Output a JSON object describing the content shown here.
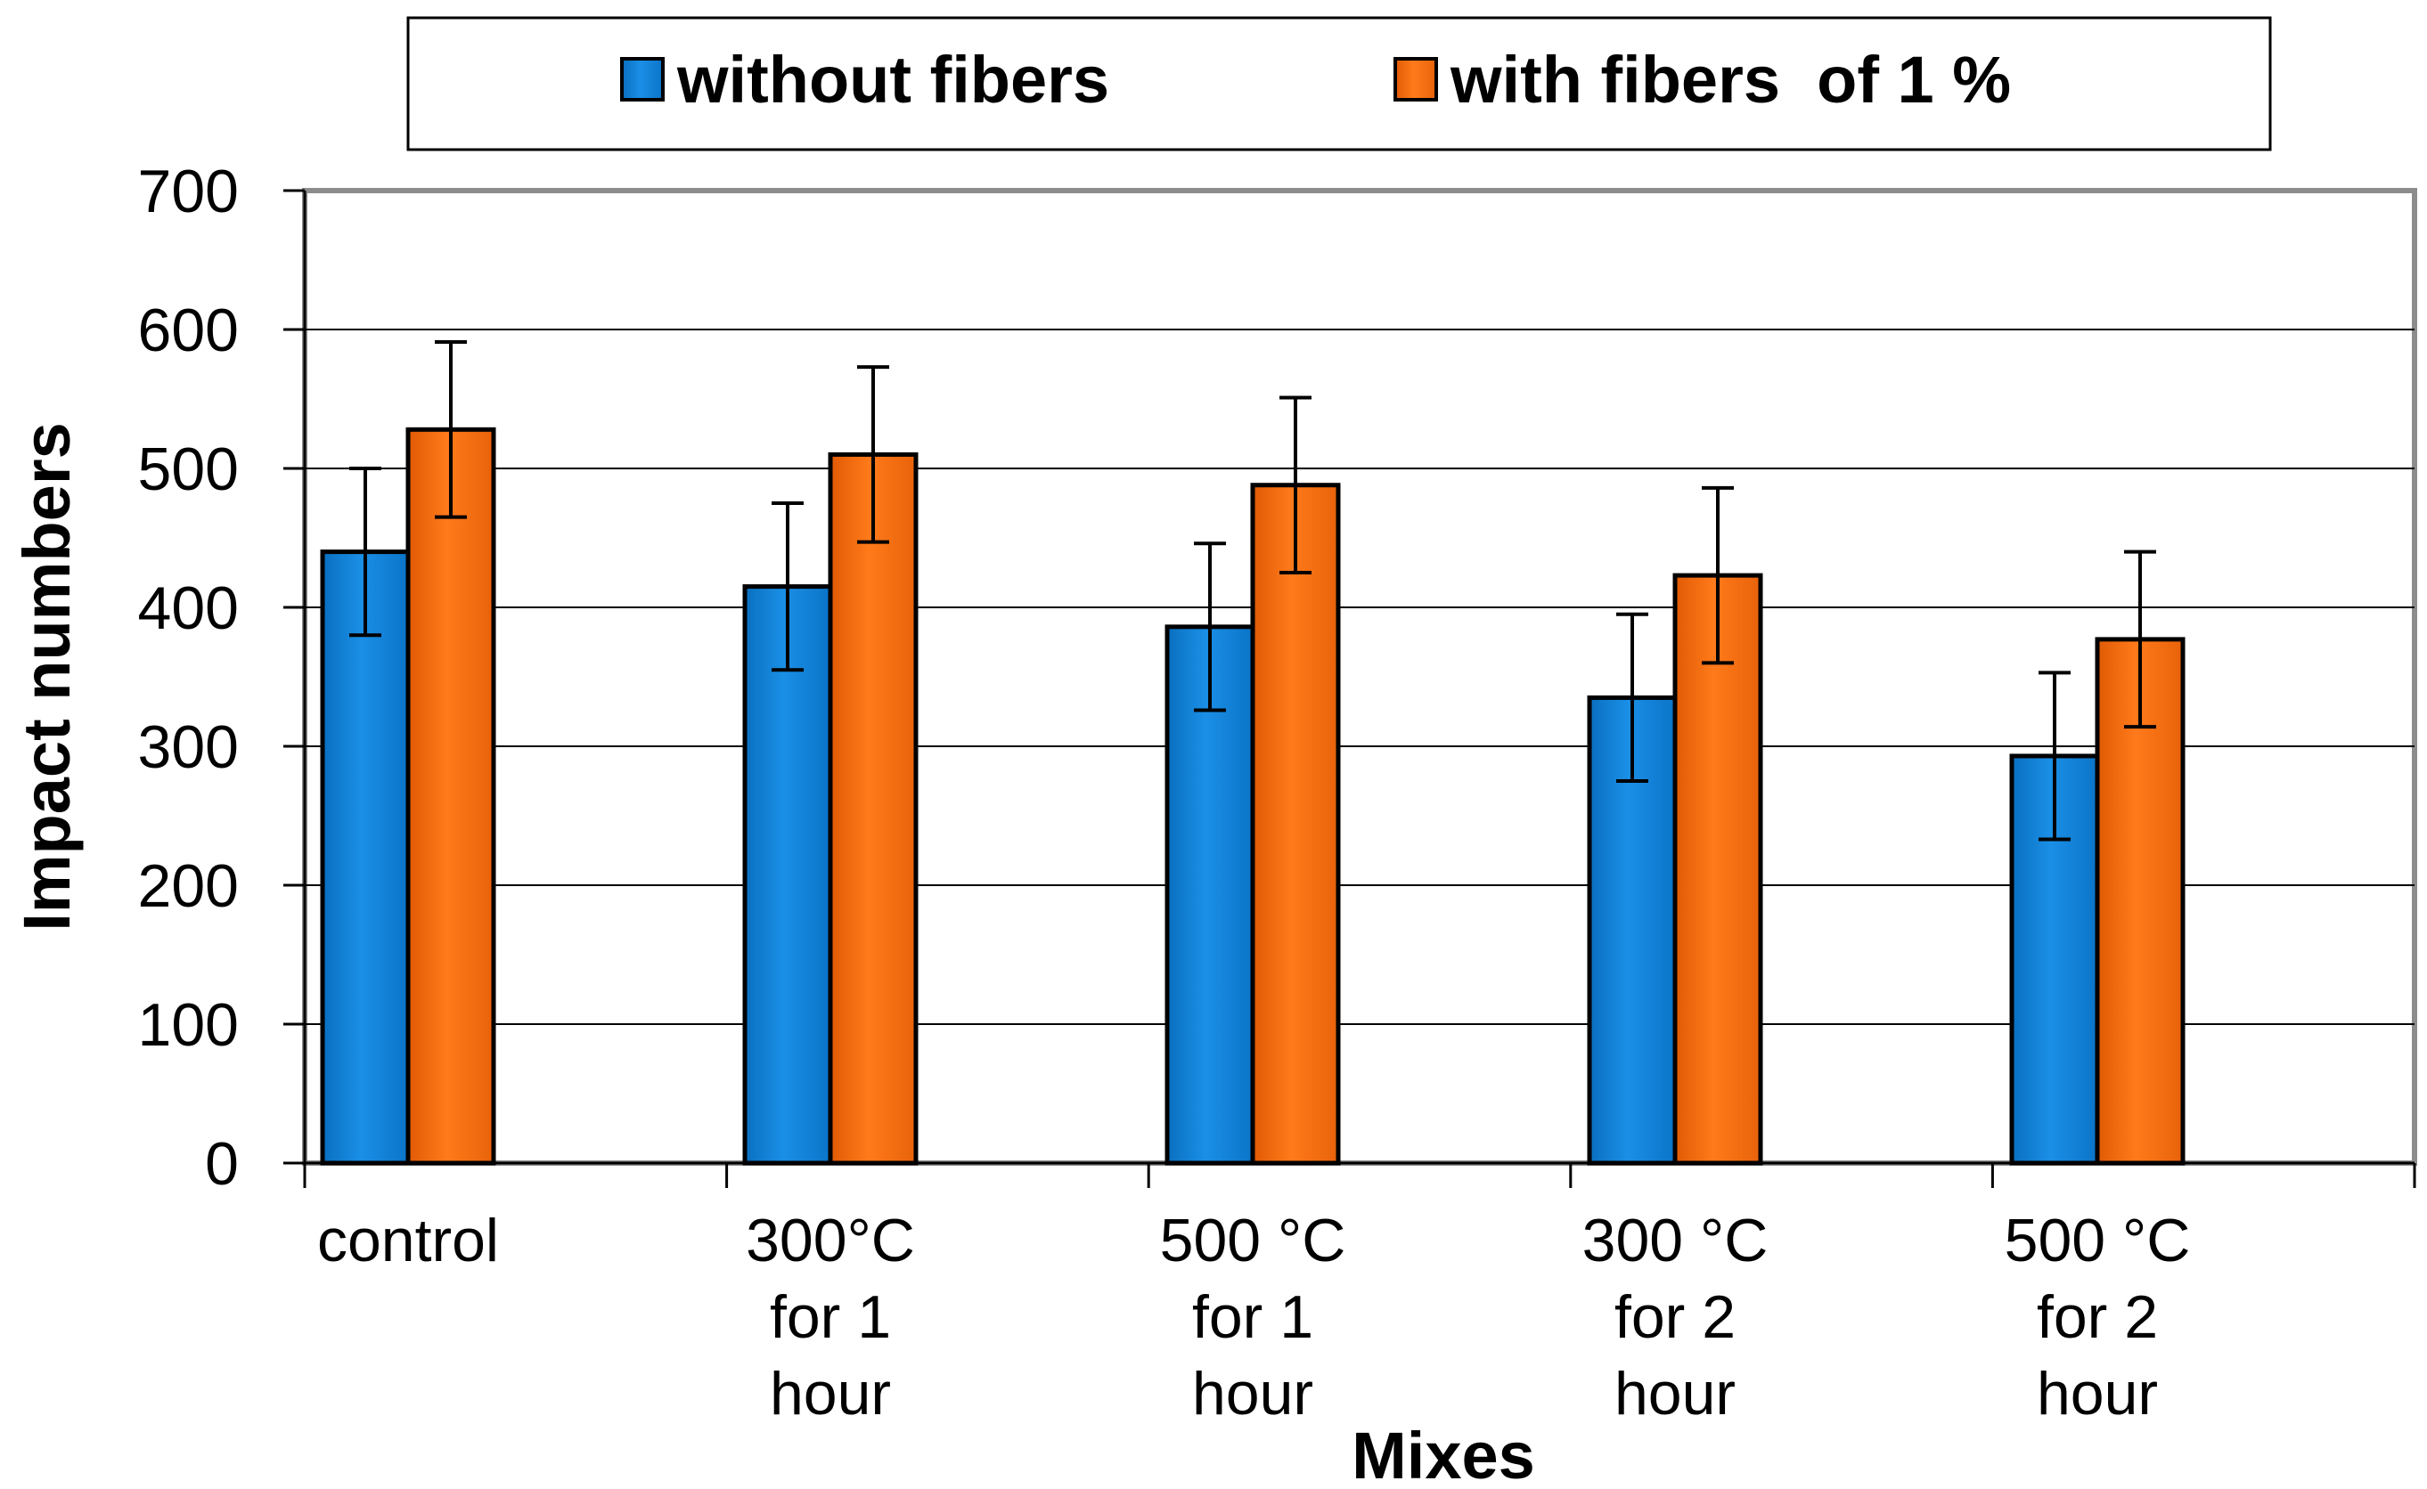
{
  "chart_data": {
    "type": "bar",
    "title": "",
    "xlabel": "Mixes",
    "ylabel": "Impact numbers",
    "ylim": [
      0,
      700
    ],
    "ytick_step": 100,
    "grid": true,
    "legend_position": "top",
    "categories": [
      [
        "control"
      ],
      [
        "300°C",
        "for 1",
        "hour"
      ],
      [
        "500 °C",
        "for 1",
        "hour"
      ],
      [
        "300 °C",
        "for 2",
        "hour"
      ],
      [
        "500 °C",
        "for 2",
        "hour"
      ]
    ],
    "series": [
      {
        "name": "without fibers",
        "color": "#0a7fd6",
        "values": [
          440,
          415,
          386,
          335,
          293
        ],
        "error": [
          60,
          60,
          60,
          60,
          60
        ]
      },
      {
        "name": "with fibers  of 1 %",
        "color": "#f26a0c",
        "values": [
          528,
          510,
          488,
          423,
          377
        ],
        "error": [
          63,
          63,
          63,
          63,
          63
        ]
      }
    ]
  }
}
